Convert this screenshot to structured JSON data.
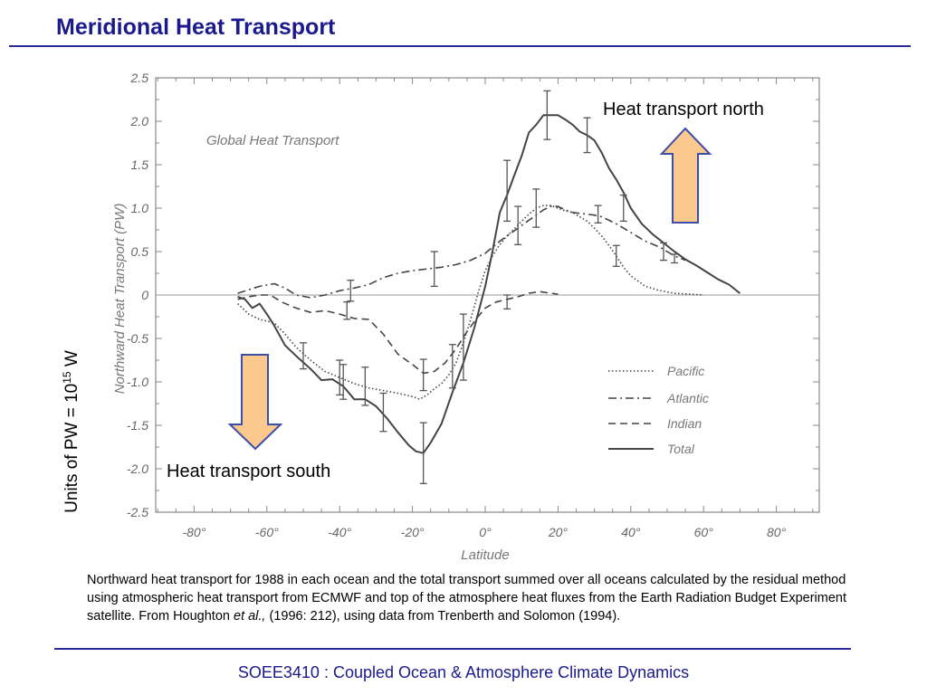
{
  "slide": {
    "title": "Meridional Heat Transport",
    "y_units_prefix": "Units of PW = 10",
    "y_units_exp": "15",
    "y_units_suffix": " W",
    "annotation_north": "Heat transport north",
    "annotation_south": "Heat transport south",
    "caption_part1": "Northward heat transport for 1988 in each ocean and the total transport summed over all oceans calculated by the residual method using atmospheric heat transport from ECMWF and top of the atmosphere heat fluxes from the Earth Radiation Budget Experiment satellite. From Houghton ",
    "caption_italic": "et al.,",
    "caption_part2": " (1996: 212), using data from Trenberth and Solomon (1994).",
    "footer": "SOEE3410 : Coupled Ocean & Atmosphere Climate Dynamics",
    "arrow_fill": "#fbc98e",
    "arrow_stroke": "#3b4ea8"
  },
  "chart_data": {
    "type": "line",
    "title": "Global Heat Transport",
    "xlabel": "Latitude",
    "ylabel": "Northward Heat Transport (PW)",
    "xlim": [
      -90,
      90
    ],
    "ylim": [
      -2.5,
      2.5
    ],
    "xticks": [
      -80,
      -60,
      -40,
      -20,
      0,
      20,
      40,
      60,
      80
    ],
    "xtick_labels": [
      "-80°",
      "-60°",
      "-40°",
      "-20°",
      "0°",
      "20°",
      "40°",
      "60°",
      "80°"
    ],
    "yticks": [
      2.5,
      2.0,
      1.5,
      1.0,
      0.5,
      0,
      -0.5,
      -1.0,
      -1.5,
      -2.0,
      -2.5
    ],
    "ytick_labels": [
      "2.5",
      "2.0",
      "1.5",
      "1.0",
      "0.5",
      "0",
      "-0.5",
      "-1.0",
      "-1.5",
      "-2.0",
      "-2.5"
    ],
    "grid": false,
    "zero_line": true,
    "legend_position": "bottom-right",
    "series": [
      {
        "name": "Pacific",
        "style": "dotted",
        "x": [
          -68,
          -65,
          -62,
          -58,
          -55,
          -52,
          -48,
          -44,
          -40,
          -36,
          -32,
          -28,
          -24,
          -20,
          -18,
          -16,
          -14,
          -12,
          -10,
          -8,
          -6,
          -4,
          -2,
          0,
          2,
          4,
          6,
          8,
          10,
          12,
          14,
          16,
          18,
          20,
          22,
          24,
          26,
          28,
          30,
          32,
          34,
          36,
          38,
          40,
          44,
          48,
          52,
          56,
          60
        ],
        "y": [
          -0.1,
          -0.22,
          -0.28,
          -0.32,
          -0.45,
          -0.6,
          -0.75,
          -0.88,
          -0.95,
          -1.02,
          -1.07,
          -1.1,
          -1.13,
          -1.17,
          -1.2,
          -1.15,
          -1.08,
          -1.02,
          -0.92,
          -0.78,
          -0.55,
          -0.28,
          0.02,
          0.28,
          0.45,
          0.58,
          0.68,
          0.76,
          0.85,
          0.93,
          1.0,
          1.03,
          1.03,
          1.0,
          0.97,
          0.95,
          0.9,
          0.85,
          0.77,
          0.68,
          0.57,
          0.45,
          0.32,
          0.22,
          0.1,
          0.05,
          0.02,
          0.01,
          0.0
        ]
      },
      {
        "name": "Atlantic",
        "style": "dashdot",
        "x": [
          -68,
          -65,
          -62,
          -58,
          -55,
          -52,
          -48,
          -44,
          -40,
          -36,
          -32,
          -28,
          -24,
          -20,
          -16,
          -12,
          -8,
          -4,
          0,
          2,
          4,
          6,
          8,
          10,
          12,
          14,
          16,
          18,
          20,
          22,
          24,
          26,
          28,
          30,
          32,
          34,
          36,
          38,
          40,
          44,
          48,
          52,
          55
        ],
        "y": [
          0.02,
          0.06,
          0.1,
          0.13,
          0.08,
          0.0,
          -0.03,
          0.0,
          0.05,
          0.08,
          0.12,
          0.2,
          0.25,
          0.28,
          0.3,
          0.32,
          0.35,
          0.4,
          0.48,
          0.55,
          0.62,
          0.68,
          0.74,
          0.8,
          0.86,
          0.92,
          0.98,
          1.02,
          1.02,
          0.98,
          0.95,
          0.94,
          0.93,
          0.92,
          0.9,
          0.86,
          0.82,
          0.77,
          0.72,
          0.62,
          0.55,
          0.45,
          0.4
        ]
      },
      {
        "name": "Indian",
        "style": "dashed",
        "x": [
          -68,
          -65,
          -62,
          -59,
          -56,
          -52,
          -48,
          -44,
          -40,
          -36,
          -32,
          -28,
          -24,
          -20,
          -17,
          -14,
          -11,
          -8,
          -5,
          -2,
          0,
          3,
          6,
          9,
          12,
          15,
          18,
          20
        ],
        "y": [
          -0.05,
          -0.02,
          0.0,
          0.0,
          -0.08,
          -0.15,
          -0.2,
          -0.18,
          -0.22,
          -0.27,
          -0.28,
          -0.45,
          -0.68,
          -0.8,
          -0.9,
          -0.88,
          -0.78,
          -0.62,
          -0.42,
          -0.25,
          -0.15,
          -0.08,
          -0.05,
          -0.02,
          0.02,
          0.04,
          0.02,
          0.01
        ]
      },
      {
        "name": "Total",
        "style": "solid",
        "x": [
          -68,
          -66,
          -64,
          -62,
          -60,
          -58,
          -55,
          -52,
          -48,
          -45,
          -42,
          -39,
          -36,
          -33,
          -30,
          -27,
          -24,
          -21,
          -19,
          -17,
          -15,
          -12,
          -9,
          -6,
          -3,
          0,
          2,
          4,
          6,
          8,
          10,
          12,
          14,
          16,
          18,
          20,
          22,
          24,
          26,
          28,
          30,
          32,
          34,
          36,
          38,
          40,
          43,
          46,
          49,
          52,
          55,
          58,
          61,
          64,
          67,
          70
        ],
        "y": [
          -0.02,
          -0.05,
          -0.15,
          -0.1,
          -0.22,
          -0.35,
          -0.58,
          -0.7,
          -0.85,
          -0.98,
          -0.97,
          -1.05,
          -1.2,
          -1.2,
          -1.28,
          -1.42,
          -1.58,
          -1.73,
          -1.8,
          -1.82,
          -1.7,
          -1.48,
          -1.12,
          -0.78,
          -0.38,
          0.1,
          0.5,
          0.95,
          1.15,
          1.38,
          1.6,
          1.87,
          1.96,
          2.07,
          2.07,
          2.07,
          2.02,
          1.96,
          1.88,
          1.84,
          1.78,
          1.64,
          1.46,
          1.33,
          1.18,
          1.0,
          0.82,
          0.7,
          0.6,
          0.5,
          0.41,
          0.34,
          0.26,
          0.18,
          0.12,
          0.02
        ]
      }
    ],
    "error_bars": [
      {
        "x": -50,
        "y": -0.7,
        "err": 0.15
      },
      {
        "x": -40,
        "y": -0.95,
        "err": 0.2
      },
      {
        "x": -39,
        "y": -1.0,
        "err": 0.2
      },
      {
        "x": -38,
        "y": -0.18,
        "err": 0.1
      },
      {
        "x": -33,
        "y": -1.05,
        "err": 0.22
      },
      {
        "x": -37,
        "y": 0.05,
        "err": 0.12
      },
      {
        "x": -28,
        "y": -1.35,
        "err": 0.22
      },
      {
        "x": -17,
        "y": -1.82,
        "err": 0.35
      },
      {
        "x": -17,
        "y": -0.92,
        "err": 0.18
      },
      {
        "x": -14,
        "y": 0.3,
        "err": 0.2
      },
      {
        "x": -9,
        "y": -0.82,
        "err": 0.25
      },
      {
        "x": -6,
        "y": -0.6,
        "err": 0.38
      },
      {
        "x": 6,
        "y": -0.08,
        "err": 0.08
      },
      {
        "x": 6,
        "y": 1.2,
        "err": 0.35
      },
      {
        "x": 9,
        "y": 0.8,
        "err": 0.22
      },
      {
        "x": 14,
        "y": 1.0,
        "err": 0.22
      },
      {
        "x": 17,
        "y": 2.07,
        "err": 0.28
      },
      {
        "x": 28,
        "y": 1.84,
        "err": 0.2
      },
      {
        "x": 31,
        "y": 0.93,
        "err": 0.1
      },
      {
        "x": 36,
        "y": 0.45,
        "err": 0.12
      },
      {
        "x": 38,
        "y": 1.0,
        "err": 0.15
      },
      {
        "x": 49,
        "y": 0.5,
        "err": 0.1
      },
      {
        "x": 52,
        "y": 0.42,
        "err": 0.05
      }
    ]
  }
}
